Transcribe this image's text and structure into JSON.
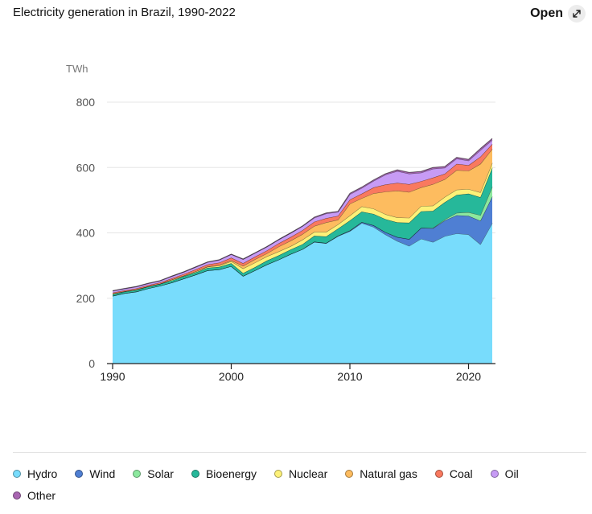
{
  "header": {
    "title": "Electricity generation in Brazil, 1990-2022",
    "open_label": "Open",
    "open_icon": "expand-arrow-icon"
  },
  "chart_data": {
    "type": "area",
    "stacked": true,
    "title": "Electricity generation in Brazil, 1990-2022",
    "unit_label": "TWh",
    "xlim": [
      1990,
      2022
    ],
    "ylim": [
      0,
      800
    ],
    "x_ticks": [
      1990,
      2000,
      2010,
      2020
    ],
    "y_ticks": [
      0,
      200,
      400,
      600,
      800
    ],
    "grid": true,
    "legend_position": "bottom",
    "x": [
      1990,
      1991,
      1992,
      1993,
      1994,
      1995,
      1996,
      1997,
      1998,
      1999,
      2000,
      2001,
      2002,
      2003,
      2004,
      2005,
      2006,
      2007,
      2008,
      2009,
      2010,
      2011,
      2012,
      2013,
      2014,
      2015,
      2016,
      2017,
      2018,
      2019,
      2020,
      2021,
      2022
    ],
    "series": [
      {
        "name": "Hydro",
        "color": "#78dcfc",
        "values": [
          207,
          215,
          220,
          230,
          238,
          248,
          260,
          272,
          285,
          288,
          298,
          268,
          285,
          303,
          318,
          335,
          350,
          372,
          368,
          390,
          405,
          430,
          418,
          395,
          375,
          360,
          382,
          372,
          390,
          398,
          395,
          365,
          430
        ]
      },
      {
        "name": "Wind",
        "color": "#4f7fd3",
        "values": [
          0,
          0,
          0,
          0,
          0,
          0,
          0,
          0,
          0,
          0,
          0,
          0,
          0,
          0,
          0,
          0,
          0,
          1,
          1,
          1,
          2,
          3,
          5,
          7,
          12,
          21,
          33,
          42,
          48,
          56,
          57,
          72,
          81
        ]
      },
      {
        "name": "Solar",
        "color": "#8ce89e",
        "values": [
          0,
          0,
          0,
          0,
          0,
          0,
          0,
          0,
          0,
          0,
          0,
          0,
          0,
          0,
          0,
          0,
          0,
          0,
          0,
          0,
          0,
          0,
          0,
          0,
          0,
          0,
          0,
          1,
          3,
          7,
          11,
          17,
          30
        ]
      },
      {
        "name": "Bioenergy",
        "color": "#26b89a",
        "values": [
          5,
          5,
          5,
          6,
          6,
          6,
          7,
          7,
          8,
          8,
          9,
          9,
          10,
          12,
          13,
          14,
          15,
          18,
          20,
          22,
          31,
          32,
          35,
          40,
          45,
          50,
          51,
          52,
          53,
          55,
          57,
          55,
          58
        ]
      },
      {
        "name": "Nuclear",
        "color": "#fdf178",
        "values": [
          2,
          1,
          2,
          0,
          0,
          3,
          2,
          3,
          3,
          4,
          6,
          14,
          14,
          13,
          12,
          10,
          14,
          12,
          14,
          13,
          15,
          16,
          16,
          15,
          15,
          15,
          16,
          16,
          16,
          16,
          14,
          15,
          15
        ]
      },
      {
        "name": "Natural gas",
        "color": "#fdbc5f",
        "values": [
          0,
          0,
          0,
          0,
          0,
          0,
          0,
          0,
          1,
          2,
          3,
          8,
          10,
          9,
          15,
          17,
          17,
          18,
          29,
          14,
          36,
          25,
          47,
          69,
          82,
          79,
          57,
          66,
          54,
          60,
          56,
          87,
          43
        ]
      },
      {
        "name": "Coal",
        "color": "#f9795f",
        "values": [
          3,
          3,
          3,
          4,
          4,
          4,
          5,
          6,
          6,
          7,
          8,
          8,
          8,
          9,
          10,
          11,
          12,
          13,
          13,
          12,
          13,
          14,
          18,
          22,
          24,
          24,
          19,
          20,
          17,
          19,
          17,
          22,
          15
        ]
      },
      {
        "name": "Oil",
        "color": "#c79bf5",
        "values": [
          5,
          5,
          5,
          5,
          5,
          6,
          6,
          7,
          7,
          8,
          10,
          12,
          11,
          11,
          11,
          12,
          12,
          12,
          14,
          12,
          16,
          17,
          20,
          30,
          36,
          32,
          26,
          27,
          18,
          16,
          14,
          20,
          12
        ]
      },
      {
        "name": "Other",
        "color": "#a865b1",
        "values": [
          1,
          1,
          1,
          1,
          1,
          1,
          1,
          1,
          1,
          1,
          1,
          1,
          1,
          1,
          1,
          1,
          1,
          2,
          2,
          2,
          3,
          3,
          3,
          3,
          4,
          4,
          4,
          4,
          4,
          4,
          4,
          5,
          5
        ]
      }
    ]
  }
}
